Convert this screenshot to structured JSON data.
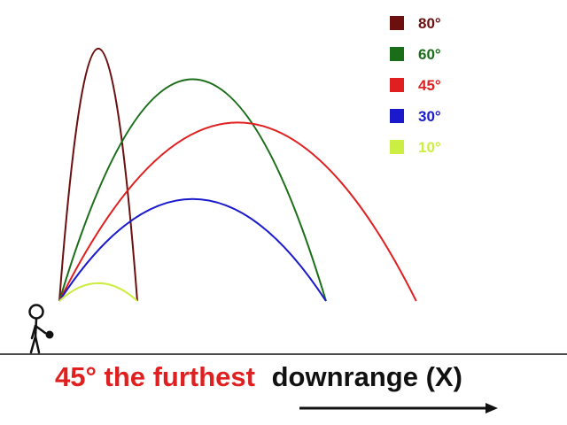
{
  "caption": {
    "highlight": "45° the furthest",
    "rest": "downrange (X)",
    "highlight_color": "#e02020",
    "rest_color": "#111111"
  },
  "legend": [
    {
      "label": "80°",
      "color": "#6b0f0f"
    },
    {
      "label": "60°",
      "color": "#1a6e1a"
    },
    {
      "label": "45°",
      "color": "#e02020"
    },
    {
      "label": "30°",
      "color": "#1a1acc"
    },
    {
      "label": "10°",
      "color": "#ccee44"
    }
  ],
  "trajectories": [
    {
      "angle": "80°",
      "color": "#6b0f0f",
      "range": 0.19,
      "max_height": 0.99
    },
    {
      "angle": "60°",
      "color": "#1a6e1a",
      "range": 0.65,
      "max_height": 0.87
    },
    {
      "angle": "45°",
      "color": "#e02020",
      "range": 0.87,
      "max_height": 0.7
    },
    {
      "angle": "30°",
      "color": "#1a1acc",
      "range": 0.65,
      "max_height": 0.4
    },
    {
      "angle": "10°",
      "color": "#ccee44",
      "range": 0.19,
      "max_height": 0.07
    }
  ],
  "icons": {
    "figure": "stick-figure-icon",
    "ball": "ball-icon",
    "arrow": "arrow-right-icon"
  }
}
